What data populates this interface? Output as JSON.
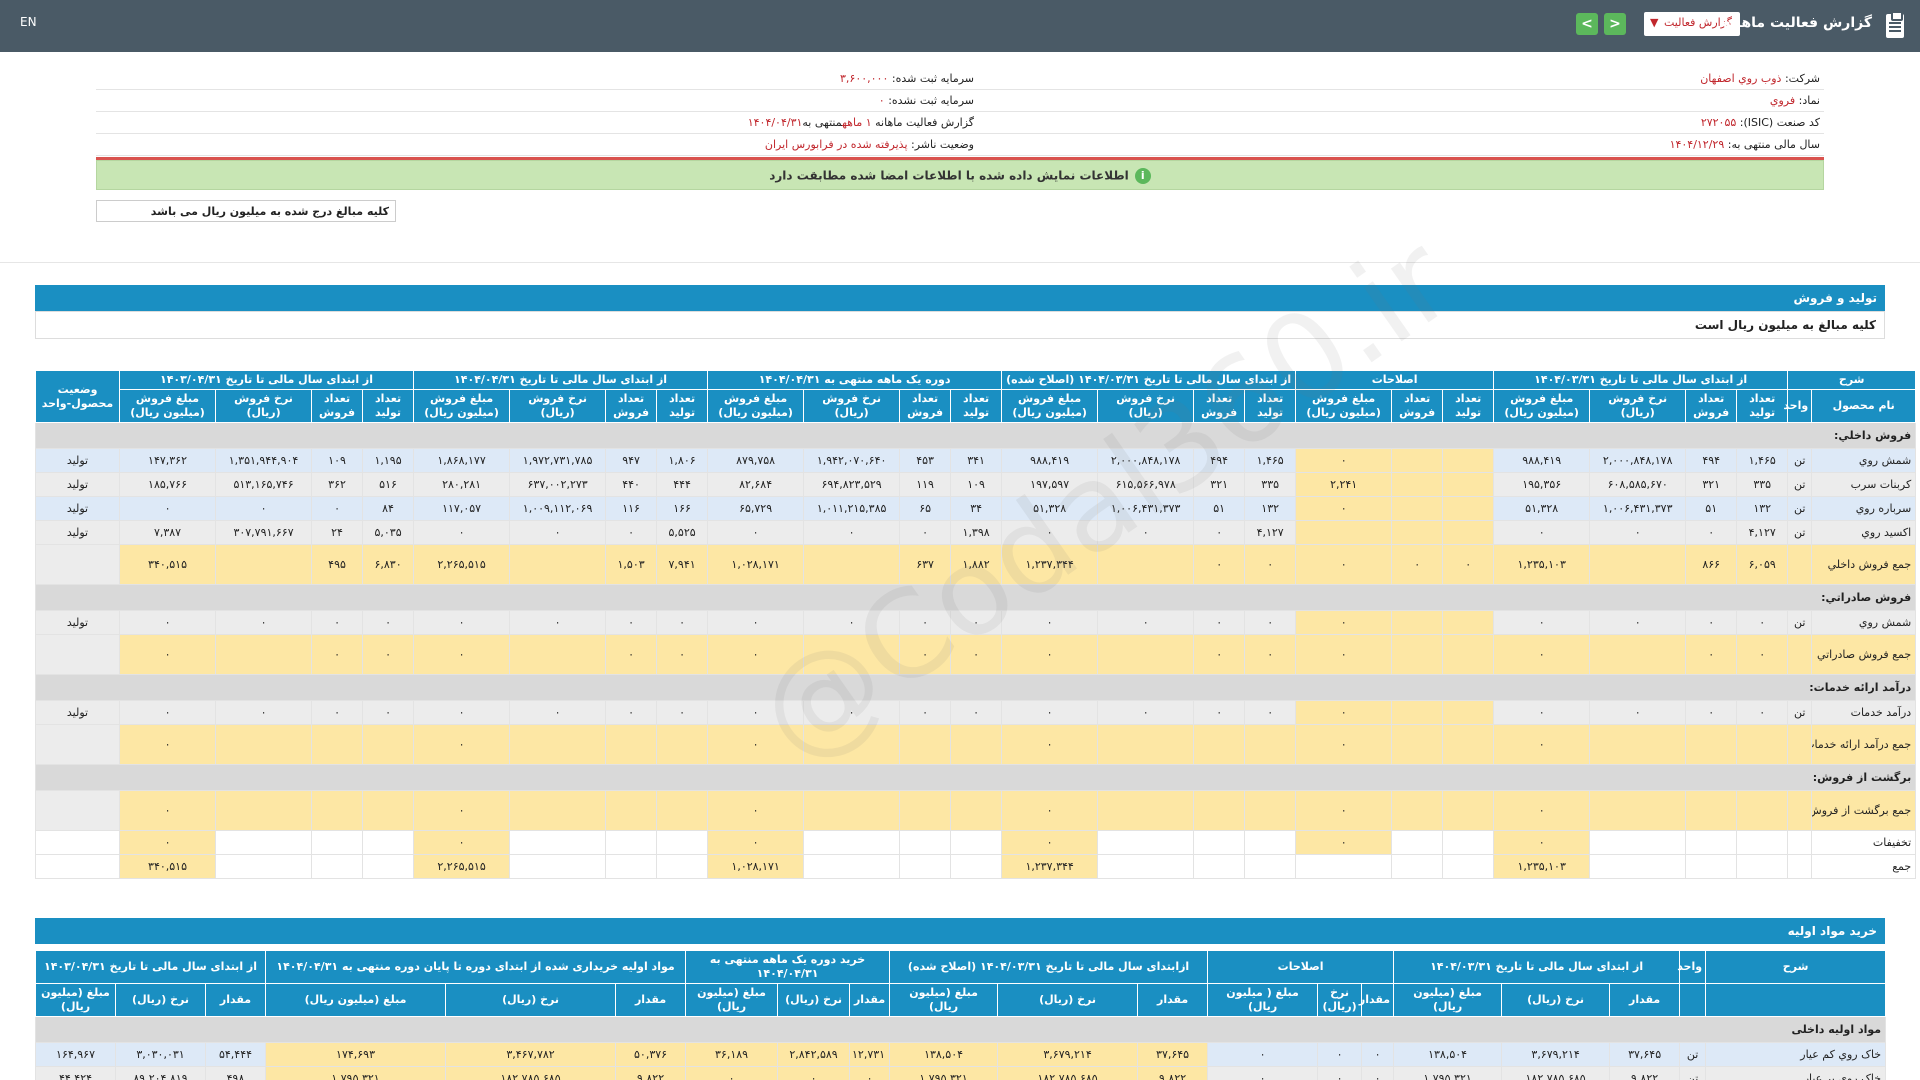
{
  "topbar": {
    "lang": "EN",
    "title": "گزارش فعالیت ماهانه",
    "select_value": "گزارش فعالیت",
    "next": ">",
    "prev": "<"
  },
  "info": {
    "company_label": "شرکت:",
    "company": "ذوب روي اصفهان",
    "symbol_label": "نماد:",
    "symbol": "فروي",
    "isic_label": "کد صنعت (ISIC):",
    "isic": "۲۷۲۰۵۵",
    "fiscal_label": "سال مالی منتهی به:",
    "fiscal": "۱۴۰۴/۱۲/۲۹",
    "capital_label": "سرمایه ثبت شده:",
    "capital": "۳,۶۰۰,۰۰۰",
    "capital_unreg_label": "سرمایه ثبت نشده:",
    "capital_unreg": "۰",
    "report_label": "گزارش فعالیت ماهانه",
    "report_period": "۱ ماهه",
    "report_end": "منتهی به",
    "report_date": "۱۴۰۴/۰۴/۳۱",
    "publisher_label": "وضعیت ناشر:",
    "publisher": "پذیرفته شده در فرابورس ایران",
    "green_msg": "اطلاعات نمایش داده شده با اطلاعات امضا شده مطابقت دارد",
    "note": "کلیه مبالغ درج شده به میلیون ریال می باشد"
  },
  "production": {
    "title": "تولید و فروش",
    "subtitle": "کلیه مبالغ به میلیون ریال است",
    "groups": [
      "شرح",
      "از ابتدای سال مالی تا تاریخ ۱۴۰۴/۰۳/۳۱",
      "اصلاحات",
      "از ابتدای سال مالی تا تاریخ ۱۴۰۴/۰۳/۳۱ (اصلاح شده)",
      "دوره یک ماهه منتهی به ۱۴۰۴/۰۴/۳۱",
      "از ابتدای سال مالی تا تاریخ ۱۴۰۴/۰۴/۳۱",
      "از ابتدای سال مالی تا تاریخ ۱۴۰۳/۰۴/۳۱",
      "وضعیت محصول-واحد"
    ],
    "sub_headers": {
      "name": "نام محصول",
      "unit": "واحد",
      "prod": "تعداد تولید",
      "sales": "تعداد فروش",
      "rate": "نرخ فروش (ریال)",
      "amount": "مبلغ فروش (میلیون ریال)",
      "adj_prod": "تعداد تولید",
      "adj_sales": "تعداد فروش",
      "adj_amount": "مبلغ فروش (میلیون ریال)"
    },
    "rows": [
      {
        "type": "cat",
        "name": "فروش داخلي:"
      },
      {
        "type": "blue",
        "name": "شمش روي",
        "unit": "تن",
        "c": [
          "۱,۴۶۵",
          "۴۹۴",
          "۲,۰۰۰,۸۴۸,۱۷۸",
          "۹۸۸,۴۱۹",
          "",
          "",
          "۰",
          "۱,۴۶۵",
          "۴۹۴",
          "۲,۰۰۰,۸۴۸,۱۷۸",
          "۹۸۸,۴۱۹",
          "۳۴۱",
          "۴۵۳",
          "۱,۹۴۲,۰۷۰,۶۴۰",
          "۸۷۹,۷۵۸",
          "۱,۸۰۶",
          "۹۴۷",
          "۱,۹۷۲,۷۳۱,۷۸۵",
          "۱,۸۶۸,۱۷۷",
          "۱,۱۹۵",
          "۱۰۹",
          "۱,۳۵۱,۹۴۴,۹۰۴",
          "۱۴۷,۳۶۲"
        ],
        "status": "تولید"
      },
      {
        "type": "gray",
        "name": "کربنات سرب",
        "unit": "تن",
        "c": [
          "۳۳۵",
          "۳۲۱",
          "۶۰۸,۵۸۵,۶۷۰",
          "۱۹۵,۳۵۶",
          "",
          "",
          "۲,۲۴۱",
          "۳۳۵",
          "۳۲۱",
          "۶۱۵,۵۶۶,۹۷۸",
          "۱۹۷,۵۹۷",
          "۱۰۹",
          "۱۱۹",
          "۶۹۴,۸۲۳,۵۲۹",
          "۸۲,۶۸۴",
          "۴۴۴",
          "۴۴۰",
          "۶۳۷,۰۰۲,۲۷۳",
          "۲۸۰,۲۸۱",
          "۵۱۶",
          "۳۶۲",
          "۵۱۳,۱۶۵,۷۴۶",
          "۱۸۵,۷۶۶"
        ],
        "status": "تولید"
      },
      {
        "type": "blue",
        "name": "سرباره روي",
        "unit": "تن",
        "c": [
          "۱۳۲",
          "۵۱",
          "۱,۰۰۶,۴۳۱,۳۷۳",
          "۵۱,۳۲۸",
          "",
          "",
          "۰",
          "۱۳۲",
          "۵۱",
          "۱,۰۰۶,۴۳۱,۳۷۳",
          "۵۱,۳۲۸",
          "۳۴",
          "۶۵",
          "۱,۰۱۱,۲۱۵,۳۸۵",
          "۶۵,۷۲۹",
          "۱۶۶",
          "۱۱۶",
          "۱,۰۰۹,۱۱۲,۰۶۹",
          "۱۱۷,۰۵۷",
          "۸۴",
          "۰",
          "۰",
          "۰"
        ],
        "status": "تولید"
      },
      {
        "type": "gray",
        "name": "اکسيد روي",
        "unit": "تن",
        "c": [
          "۴,۱۲۷",
          "۰",
          "۰",
          "۰",
          "",
          "",
          "",
          "۴,۱۲۷",
          "۰",
          "۰",
          "۰",
          "۱,۳۹۸",
          "۰",
          "۰",
          "۰",
          "۵,۵۲۵",
          "۰",
          "۰",
          "۰",
          "۵,۰۳۵",
          "۲۴",
          "۳۰۷,۷۹۱,۶۶۷",
          "۷,۳۸۷"
        ],
        "status": "تولید"
      },
      {
        "type": "total",
        "name": "جمع فروش داخلي",
        "c": [
          "۶,۰۵۹",
          "۸۶۶",
          "",
          "۱,۲۳۵,۱۰۳",
          "۰",
          "۰",
          "۰",
          "۰",
          "۰",
          "",
          "۱,۲۳۷,۳۴۴",
          "۱,۸۸۲",
          "۶۳۷",
          "",
          "۱,۰۲۸,۱۷۱",
          "۷,۹۴۱",
          "۱,۵۰۳",
          "",
          "۲,۲۶۵,۵۱۵",
          "۶,۸۳۰",
          "۴۹۵",
          "",
          "۳۴۰,۵۱۵"
        ]
      },
      {
        "type": "cat",
        "name": "فروش صادراتي:"
      },
      {
        "type": "gray",
        "name": "شمش روي",
        "unit": "تن",
        "c": [
          "۰",
          "۰",
          "۰",
          "۰",
          "",
          "",
          "۰",
          "۰",
          "۰",
          "۰",
          "۰",
          "۰",
          "۰",
          "۰",
          "۰",
          "۰",
          "۰",
          "۰",
          "۰",
          "۰",
          "۰",
          "۰",
          "۰"
        ],
        "status": "تولید"
      },
      {
        "type": "total",
        "name": "جمع فروش صادراتي",
        "c": [
          "۰",
          "۰",
          "",
          "۰",
          "",
          "",
          "۰",
          "۰",
          "۰",
          "",
          "۰",
          "۰",
          "۰",
          "",
          "۰",
          "۰",
          "۰",
          "",
          "۰",
          "۰",
          "۰",
          "",
          "۰"
        ]
      },
      {
        "type": "cat",
        "name": "درآمد ارائه خدمات:"
      },
      {
        "type": "gray",
        "name": "درآمد خدمات",
        "unit": "تن",
        "c": [
          "۰",
          "۰",
          "۰",
          "۰",
          "",
          "",
          "۰",
          "۰",
          "۰",
          "۰",
          "۰",
          "۰",
          "۰",
          "۰",
          "۰",
          "۰",
          "۰",
          "۰",
          "۰",
          "۰",
          "۰",
          "۰",
          "۰"
        ],
        "status": "تولید"
      },
      {
        "type": "total",
        "name": "جمع درآمد ارائه خدمات",
        "c": [
          "",
          "",
          "",
          "۰",
          "",
          "",
          "۰",
          "",
          "",
          "",
          "۰",
          "",
          "",
          "",
          "۰",
          "",
          "",
          "",
          "۰",
          "",
          "",
          "",
          "۰"
        ]
      },
      {
        "type": "cat",
        "name": "برگشت از فروش:"
      },
      {
        "type": "total",
        "name": "جمع برگشت از فروش",
        "c": [
          "",
          "",
          "",
          "۰",
          "",
          "",
          "۰",
          "",
          "",
          "",
          "۰",
          "",
          "",
          "",
          "۰",
          "",
          "",
          "",
          "۰",
          "",
          "",
          "",
          "۰"
        ]
      },
      {
        "type": "plain",
        "name": "تخفيفات",
        "c": [
          "",
          "",
          "",
          "۰",
          "",
          "",
          "۰",
          "",
          "",
          "",
          "۰",
          "",
          "",
          "",
          "۰",
          "",
          "",
          "",
          "۰",
          "",
          "",
          "",
          "۰"
        ]
      },
      {
        "type": "plainy",
        "name": "جمع",
        "c": [
          "",
          "",
          "",
          "۱,۲۳۵,۱۰۳",
          "",
          "",
          "",
          "",
          "",
          "",
          "۱,۲۳۷,۳۴۴",
          "",
          "",
          "",
          "۱,۰۲۸,۱۷۱",
          "",
          "",
          "",
          "۲,۲۶۵,۵۱۵",
          "",
          "",
          "",
          "۳۴۰,۵۱۵"
        ]
      }
    ]
  },
  "materials": {
    "title": "خرید مواد اولیه",
    "groups": [
      "شرح",
      "واحد",
      "از ابتدای سال مالی تا تاریخ ۱۴۰۴/۰۳/۳۱",
      "اصلاحات",
      "ازابتدای سال مالی تا تاریخ ۱۴۰۴/۰۳/۳۱ (اصلاح شده)",
      "خرید دوره یک ماهه منتهی به ۱۴۰۴/۰۴/۳۱",
      "مواد اولیه خریداری شده از ابتدای دوره تا پایان دوره منتهی به ۱۴۰۴/۰۴/۳۱",
      "از ابتدای سال مالی تا تاریخ ۱۴۰۳/۰۴/۳۱"
    ],
    "sub": {
      "qty": "مقدار",
      "rate": "نرخ (ریال)",
      "amount": "مبلغ (میلیون ریال)",
      "adj_amount": "مبلغ ( میلیون ریال)"
    },
    "rows": [
      {
        "type": "cat",
        "name": "مواد اولیه داخلی"
      },
      {
        "type": "blue",
        "name": "خاک روي کم عيار",
        "unit": "تن",
        "c": [
          "۳۷,۶۴۵",
          "۳,۶۷۹,۲۱۴",
          "۱۳۸,۵۰۴",
          "۰",
          "۰",
          "۰",
          "۳۷,۶۴۵",
          "۳,۶۷۹,۲۱۴",
          "۱۳۸,۵۰۴",
          "۱۲,۷۳۱",
          "۲,۸۴۲,۵۸۹",
          "۳۶,۱۸۹",
          "۵۰,۳۷۶",
          "۳,۴۶۷,۷۸۲",
          "۱۷۴,۶۹۳",
          "۵۴,۴۴۴",
          "۳,۰۳۰,۰۳۱",
          "۱۶۴,۹۶۷"
        ]
      },
      {
        "type": "gray",
        "name": "خاک روي پر عيار",
        "unit": "تن",
        "c": [
          "۹,۸۲۲",
          "۱۸۲,۷۸۵,۶۸۵",
          "۱,۷۹۵,۳۲۱",
          "۰",
          "۰",
          "۰",
          "۹,۸۲۲",
          "۱۸۲,۷۸۵,۶۸۵",
          "۱,۷۹۵,۳۲۱",
          "۰",
          "۰",
          "۰",
          "۹,۸۲۲",
          "۱۸۲,۷۸۵,۶۸۵",
          "۱,۷۹۵,۳۲۱",
          "۴۹۸",
          "۸۹,۲۰۴,۸۱۹",
          "۴۴,۴۲۴"
        ]
      }
    ]
  }
}
